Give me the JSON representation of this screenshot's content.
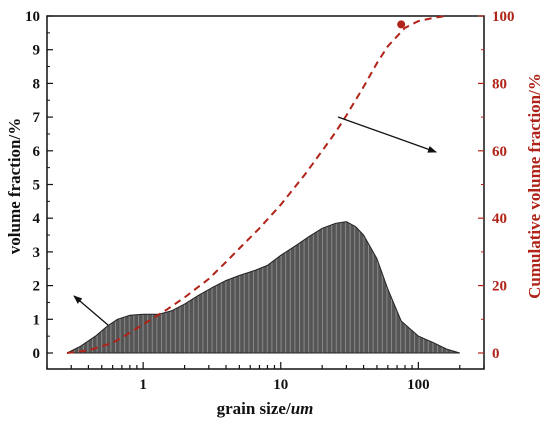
{
  "chart_data": {
    "type": "area",
    "xlabel_main": "grain size/",
    "xlabel_unit": "um",
    "ylabel": "volume fraction/%",
    "y2label": "Cumulative volume fraction/%",
    "x_scale": "log",
    "xlim": [
      0.2,
      300
    ],
    "ylim": [
      0,
      10
    ],
    "y2lim": [
      0,
      100
    ],
    "x_ticks": [
      1,
      10,
      100
    ],
    "x_tick_labels": [
      "1",
      "10",
      "100"
    ],
    "y_ticks": [
      0,
      1,
      2,
      3,
      4,
      5,
      6,
      7,
      8,
      9,
      10
    ],
    "y_tick_labels": [
      "0",
      "1",
      "2",
      "3",
      "4",
      "5",
      "6",
      "7",
      "8",
      "9",
      "10"
    ],
    "y2_ticks": [
      0,
      20,
      40,
      60,
      80,
      100
    ],
    "y2_tick_labels": [
      "0",
      "20",
      "40",
      "60",
      "80",
      "100"
    ],
    "grid": false,
    "series": [
      {
        "type": "area",
        "axis": "left",
        "color": "#555555",
        "x": [
          0.28,
          0.35,
          0.45,
          0.55,
          0.65,
          0.8,
          1.0,
          1.3,
          1.6,
          2.0,
          2.5,
          3.2,
          4.0,
          5.0,
          6.5,
          8.0,
          10,
          13,
          16,
          20,
          25,
          30,
          35,
          40,
          50,
          60,
          75,
          100,
          130,
          160,
          200
        ],
        "y": [
          0.0,
          0.2,
          0.5,
          0.8,
          1.0,
          1.12,
          1.15,
          1.15,
          1.25,
          1.45,
          1.7,
          1.95,
          2.15,
          2.3,
          2.45,
          2.6,
          2.9,
          3.2,
          3.45,
          3.7,
          3.85,
          3.9,
          3.75,
          3.5,
          2.8,
          1.9,
          0.95,
          0.5,
          0.3,
          0.12,
          0.0
        ]
      },
      {
        "type": "line",
        "axis": "right",
        "style": "dashed",
        "color": "#b02318",
        "x": [
          0.28,
          0.4,
          0.6,
          0.8,
          1.0,
          1.5,
          2.0,
          3.0,
          4.0,
          5.0,
          7.0,
          10,
          15,
          20,
          25,
          30,
          40,
          50,
          60,
          80,
          100,
          130,
          160
        ],
        "y": [
          0,
          0.8,
          3,
          6,
          8.5,
          13,
          16.5,
          22,
          27,
          31,
          37,
          44,
          53,
          60,
          65.5,
          70.5,
          79,
          86,
          91,
          96.5,
          98.5,
          99.5,
          100
        ]
      }
    ],
    "marker": {
      "x": 75,
      "y": 97.5,
      "axis": "right",
      "color": "#b02318"
    }
  }
}
